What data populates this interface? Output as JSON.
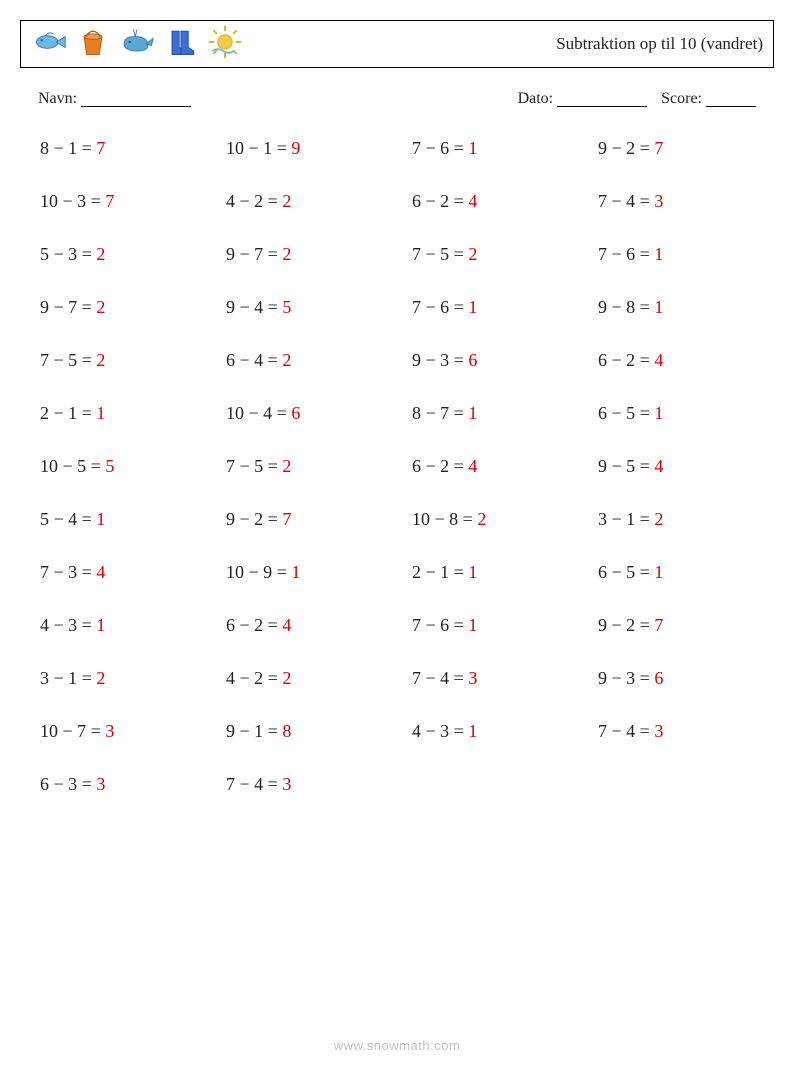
{
  "header": {
    "title": "Subtraktion op til 10 (vandret)"
  },
  "meta": {
    "name_label": "Navn:",
    "name_line_width": 110,
    "date_label": "Dato:",
    "date_line_width": 90,
    "score_label": "Score:",
    "score_line_width": 50
  },
  "style": {
    "expr_color": "#222222",
    "answer_color": "#d40000",
    "background": "#ffffff",
    "font_size_problem": 18,
    "row_gap": 32
  },
  "problems": {
    "columns": 4,
    "rows": [
      [
        {
          "a": 8,
          "b": 1,
          "ans": 7
        },
        {
          "a": 10,
          "b": 1,
          "ans": 9
        },
        {
          "a": 7,
          "b": 6,
          "ans": 1
        },
        {
          "a": 9,
          "b": 2,
          "ans": 7
        }
      ],
      [
        {
          "a": 10,
          "b": 3,
          "ans": 7
        },
        {
          "a": 4,
          "b": 2,
          "ans": 2
        },
        {
          "a": 6,
          "b": 2,
          "ans": 4
        },
        {
          "a": 7,
          "b": 4,
          "ans": 3
        }
      ],
      [
        {
          "a": 5,
          "b": 3,
          "ans": 2
        },
        {
          "a": 9,
          "b": 7,
          "ans": 2
        },
        {
          "a": 7,
          "b": 5,
          "ans": 2
        },
        {
          "a": 7,
          "b": 6,
          "ans": 1
        }
      ],
      [
        {
          "a": 9,
          "b": 7,
          "ans": 2
        },
        {
          "a": 9,
          "b": 4,
          "ans": 5
        },
        {
          "a": 7,
          "b": 6,
          "ans": 1
        },
        {
          "a": 9,
          "b": 8,
          "ans": 1
        }
      ],
      [
        {
          "a": 7,
          "b": 5,
          "ans": 2
        },
        {
          "a": 6,
          "b": 4,
          "ans": 2
        },
        {
          "a": 9,
          "b": 3,
          "ans": 6
        },
        {
          "a": 6,
          "b": 2,
          "ans": 4
        }
      ],
      [
        {
          "a": 2,
          "b": 1,
          "ans": 1
        },
        {
          "a": 10,
          "b": 4,
          "ans": 6
        },
        {
          "a": 8,
          "b": 7,
          "ans": 1
        },
        {
          "a": 6,
          "b": 5,
          "ans": 1
        }
      ],
      [
        {
          "a": 10,
          "b": 5,
          "ans": 5
        },
        {
          "a": 7,
          "b": 5,
          "ans": 2
        },
        {
          "a": 6,
          "b": 2,
          "ans": 4
        },
        {
          "a": 9,
          "b": 5,
          "ans": 4
        }
      ],
      [
        {
          "a": 5,
          "b": 4,
          "ans": 1
        },
        {
          "a": 9,
          "b": 2,
          "ans": 7
        },
        {
          "a": 10,
          "b": 8,
          "ans": 2
        },
        {
          "a": 3,
          "b": 1,
          "ans": 2
        }
      ],
      [
        {
          "a": 7,
          "b": 3,
          "ans": 4
        },
        {
          "a": 10,
          "b": 9,
          "ans": 1
        },
        {
          "a": 2,
          "b": 1,
          "ans": 1
        },
        {
          "a": 6,
          "b": 5,
          "ans": 1
        }
      ],
      [
        {
          "a": 4,
          "b": 3,
          "ans": 1
        },
        {
          "a": 6,
          "b": 2,
          "ans": 4
        },
        {
          "a": 7,
          "b": 6,
          "ans": 1
        },
        {
          "a": 9,
          "b": 2,
          "ans": 7
        }
      ],
      [
        {
          "a": 3,
          "b": 1,
          "ans": 2
        },
        {
          "a": 4,
          "b": 2,
          "ans": 2
        },
        {
          "a": 7,
          "b": 4,
          "ans": 3
        },
        {
          "a": 9,
          "b": 3,
          "ans": 6
        }
      ],
      [
        {
          "a": 10,
          "b": 7,
          "ans": 3
        },
        {
          "a": 9,
          "b": 1,
          "ans": 8
        },
        {
          "a": 4,
          "b": 3,
          "ans": 1
        },
        {
          "a": 7,
          "b": 4,
          "ans": 3
        }
      ],
      [
        {
          "a": 6,
          "b": 3,
          "ans": 3
        },
        {
          "a": 7,
          "b": 4,
          "ans": 3
        }
      ]
    ]
  },
  "footer": {
    "text": "www.snowmath.com"
  },
  "icons": {
    "list": [
      "fish-icon",
      "bucket-icon",
      "whale-icon",
      "boots-icon",
      "sun-icon"
    ]
  }
}
